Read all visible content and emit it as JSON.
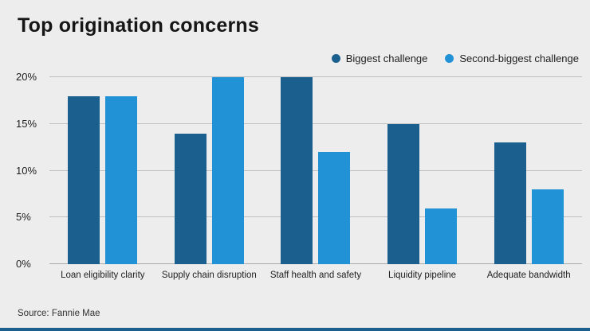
{
  "chart_data": {
    "type": "bar",
    "title": "Top origination concerns",
    "categories": [
      "Loan eligibility clarity",
      "Supply chain disruption",
      "Staff health and safety",
      "Liquidity pipeline",
      "Adequate bandwidth"
    ],
    "series": [
      {
        "name": "Biggest challenge",
        "color": "#1b5f8e",
        "values": [
          18,
          14,
          20,
          15,
          13
        ]
      },
      {
        "name": "Second-biggest challenge",
        "color": "#2192d6",
        "values": [
          18,
          20,
          12,
          6,
          8
        ]
      }
    ],
    "ylim": [
      0,
      20
    ],
    "yticks": [
      0,
      5,
      10,
      15,
      20
    ],
    "ytick_labels": [
      "0%",
      "5%",
      "10%",
      "15%",
      "20%"
    ],
    "grid": "horizontal",
    "legend_position": "top-right",
    "source": "Source: Fannie Mae",
    "accent_color": "#1b5f8e",
    "background_color": "#ededee"
  }
}
